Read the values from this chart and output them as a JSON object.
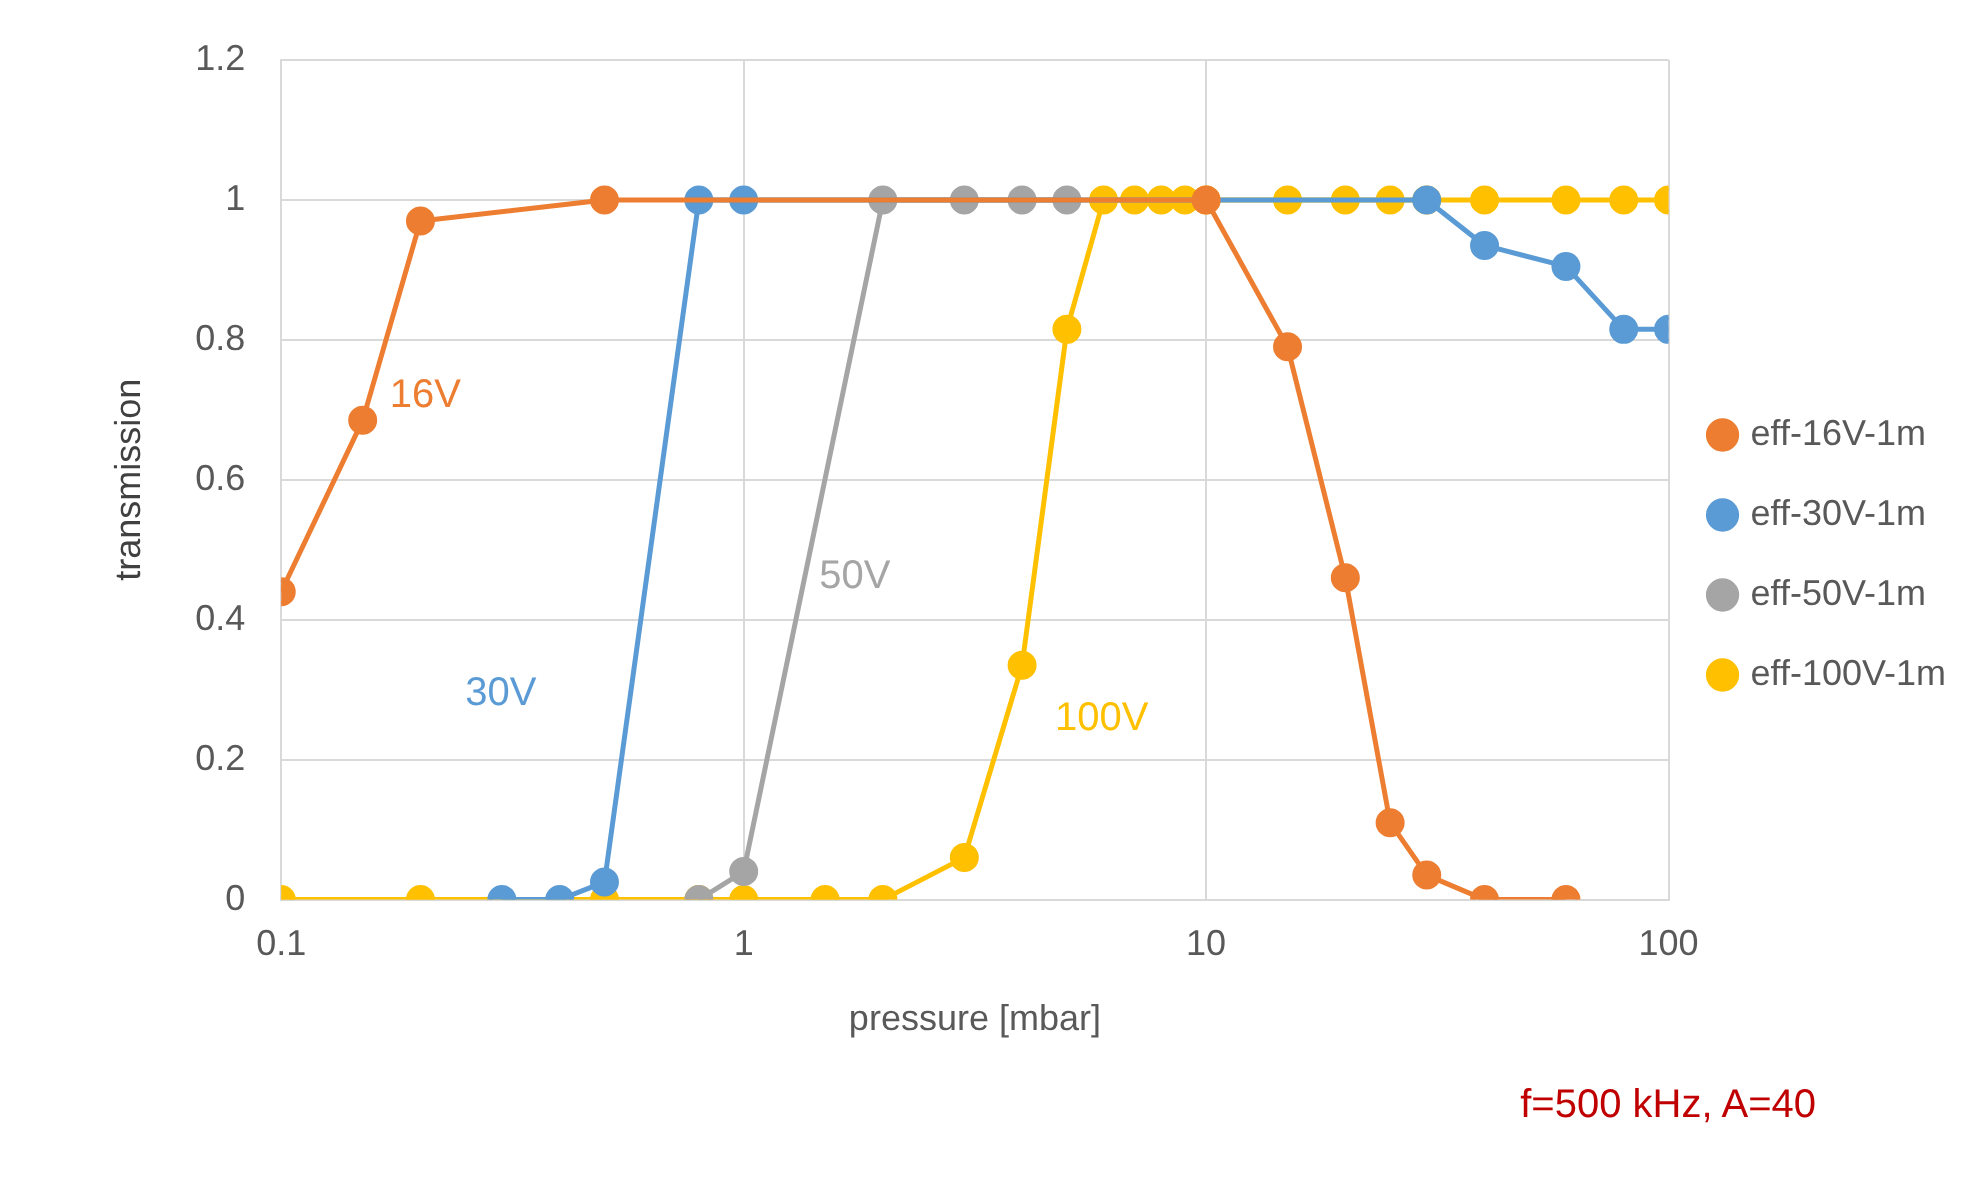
{
  "chart_data": {
    "type": "line",
    "xlabel": "pressure [mbar]",
    "ylabel": "transmission",
    "log": "x",
    "xlim": [
      0.1,
      100
    ],
    "xticks": [
      0.1,
      1,
      10,
      100
    ],
    "ylim": [
      0,
      1.2
    ],
    "yticks": [
      0,
      0.2,
      0.4,
      0.6,
      0.8,
      1,
      1.2
    ],
    "grid": true,
    "legend": "right",
    "marker": "circle",
    "line_style": "solid",
    "series": [
      {
        "name": "eff-16V-1m",
        "color": "#ed7d31",
        "x": [
          0.1,
          0.15,
          0.2,
          0.5,
          10,
          15,
          20,
          25,
          30,
          40,
          60
        ],
        "values": [
          0.44,
          0.685,
          0.97,
          1,
          1,
          0.79,
          0.46,
          0.11,
          0.035,
          0,
          0
        ]
      },
      {
        "name": "eff-30V-1m",
        "color": "#5b9bd5",
        "x": [
          0.3,
          0.4,
          0.5,
          0.8,
          1,
          30,
          40,
          60,
          80,
          100
        ],
        "values": [
          0,
          0,
          0.025,
          1,
          1,
          1,
          0.935,
          0.905,
          0.815,
          0.815
        ]
      },
      {
        "name": "eff-50V-1m",
        "color": "#a5a5a5",
        "x": [
          0.8,
          1,
          2,
          3,
          4,
          5
        ],
        "values": [
          0,
          0.04,
          1,
          1,
          1,
          1
        ]
      },
      {
        "name": "eff-100V-1m",
        "color": "#ffc000",
        "x": [
          0.1,
          0.2,
          0.5,
          0.8,
          1,
          1.5,
          2,
          3,
          4,
          5,
          6,
          7,
          8,
          9,
          10,
          15,
          20,
          25,
          30,
          40,
          60,
          80,
          100
        ],
        "values": [
          0,
          0,
          0,
          0,
          0,
          0,
          0,
          0.06,
          0.335,
          0.815,
          1,
          1,
          1,
          1,
          1,
          1,
          1,
          1,
          1,
          1,
          1,
          1,
          1
        ]
      }
    ],
    "annotations": [
      "16V",
      "30V",
      "50V",
      "100V",
      "f=500 kHz, A=40"
    ]
  }
}
